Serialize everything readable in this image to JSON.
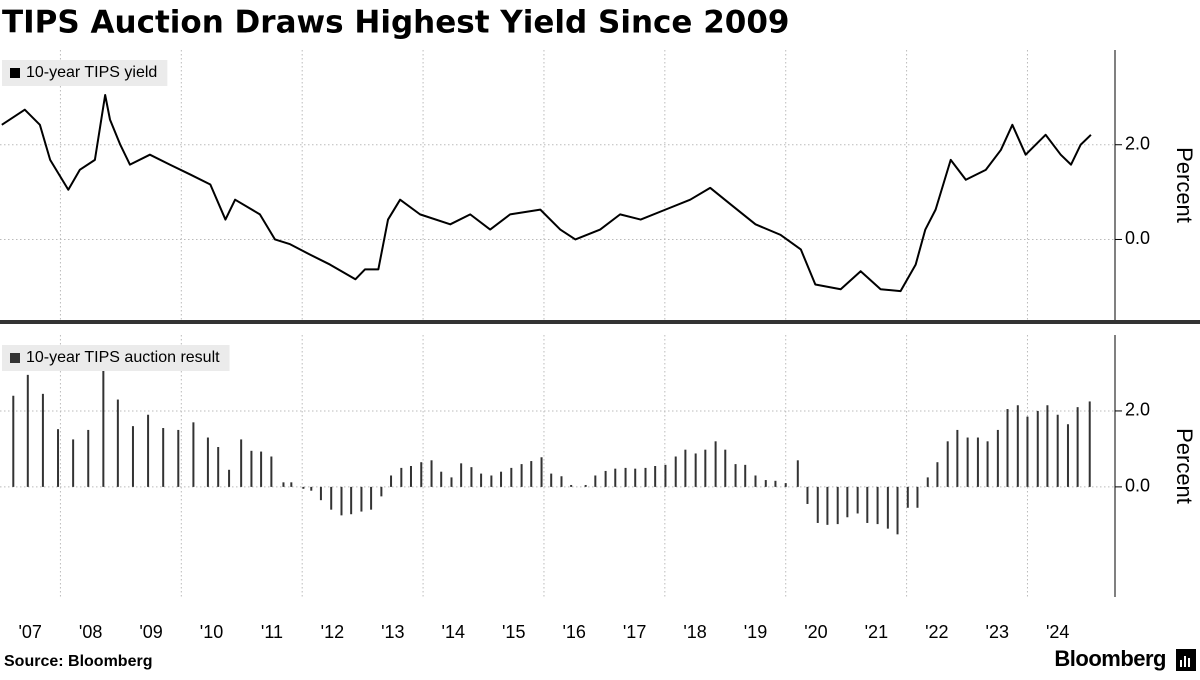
{
  "title": "TIPS Auction Draws Highest Yield Since 2009",
  "source": "Source: Bloomberg",
  "brand": "Bloomberg",
  "chart_data": [
    {
      "type": "line",
      "legend": "upper left",
      "ylabel": "Percent",
      "xlim": [
        2007,
        2025.2
      ],
      "ylim": [
        -1.7,
        4.0
      ],
      "yticks": [
        {
          "value": 0,
          "label": "0.0"
        },
        {
          "value": 2,
          "label": "2.0"
        }
      ],
      "xgrid": [
        2008,
        2010,
        2012,
        2014,
        2016,
        2018,
        2020,
        2022,
        2024
      ],
      "grid": true,
      "x": [
        2007.03,
        2007.41,
        2007.66,
        2007.83,
        2008.13,
        2008.32,
        2008.57,
        2008.74,
        2008.82,
        2008.99,
        2009.15,
        2009.48,
        2009.81,
        2010.15,
        2010.48,
        2010.73,
        2010.89,
        2011.3,
        2011.55,
        2011.8,
        2012.13,
        2012.46,
        2012.88,
        2013.04,
        2013.26,
        2013.42,
        2013.62,
        2013.95,
        2014.45,
        2014.78,
        2015.11,
        2015.44,
        2015.94,
        2016.27,
        2016.52,
        2016.93,
        2017.26,
        2017.6,
        2018.01,
        2018.42,
        2018.75,
        2019.09,
        2019.5,
        2019.91,
        2020.25,
        2020.49,
        2020.91,
        2021.24,
        2021.57,
        2021.9,
        2022.15,
        2022.31,
        2022.48,
        2022.73,
        2022.98,
        2023.31,
        2023.56,
        2023.75,
        2023.97,
        2024.3,
        2024.55,
        2024.72,
        2024.88,
        2025.05
      ],
      "series": [
        {
          "name": "10-year TIPS yield",
          "color": "#000000",
          "values": [
            2.42,
            2.74,
            2.42,
            1.68,
            1.05,
            1.47,
            1.68,
            3.05,
            2.53,
            2.0,
            1.58,
            1.79,
            1.58,
            1.37,
            1.16,
            0.42,
            0.84,
            0.53,
            0.0,
            -0.1,
            -0.32,
            -0.53,
            -0.84,
            -0.63,
            -0.63,
            0.42,
            0.84,
            0.53,
            0.32,
            0.53,
            0.21,
            0.53,
            0.63,
            0.21,
            0.0,
            0.21,
            0.53,
            0.42,
            0.63,
            0.84,
            1.09,
            0.74,
            0.32,
            0.1,
            -0.21,
            -0.95,
            -1.05,
            -0.67,
            -1.05,
            -1.09,
            -0.53,
            0.21,
            0.63,
            1.68,
            1.26,
            1.47,
            1.89,
            2.42,
            1.79,
            2.21,
            1.79,
            1.58,
            2.0,
            2.21
          ]
        }
      ]
    },
    {
      "type": "bar",
      "legend": "upper left",
      "ylabel": "Percent",
      "xlim": [
        2007,
        2025.2
      ],
      "ylim": [
        -2.9,
        4.0
      ],
      "yticks": [
        {
          "value": 0,
          "label": "0.0"
        },
        {
          "value": 2,
          "label": "2.0"
        }
      ],
      "xgrid": [
        2008,
        2010,
        2012,
        2014,
        2016,
        2018,
        2020,
        2022,
        2024
      ],
      "grid": true,
      "xticks": [
        {
          "value": 2007.5,
          "label": "'07"
        },
        {
          "value": 2008.5,
          "label": "'08"
        },
        {
          "value": 2009.5,
          "label": "'09"
        },
        {
          "value": 2010.5,
          "label": "'10"
        },
        {
          "value": 2011.5,
          "label": "'11"
        },
        {
          "value": 2012.5,
          "label": "'12"
        },
        {
          "value": 2013.5,
          "label": "'13"
        },
        {
          "value": 2014.5,
          "label": "'14"
        },
        {
          "value": 2015.5,
          "label": "'15"
        },
        {
          "value": 2016.5,
          "label": "'16"
        },
        {
          "value": 2017.5,
          "label": "'17"
        },
        {
          "value": 2018.5,
          "label": "'18"
        },
        {
          "value": 2019.5,
          "label": "'19"
        },
        {
          "value": 2020.5,
          "label": "'20"
        },
        {
          "value": 2021.5,
          "label": "'21"
        },
        {
          "value": 2022.5,
          "label": "'22"
        },
        {
          "value": 2023.5,
          "label": "'23"
        },
        {
          "value": 2024.5,
          "label": "'24"
        }
      ],
      "x": [
        2007.22,
        2007.46,
        2007.71,
        2007.96,
        2008.21,
        2008.46,
        2008.71,
        2008.95,
        2009.2,
        2009.45,
        2009.7,
        2009.95,
        2010.2,
        2010.44,
        2010.61,
        2010.79,
        2010.99,
        2011.16,
        2011.32,
        2011.49,
        2011.69,
        2011.82,
        2012.02,
        2012.15,
        2012.31,
        2012.48,
        2012.65,
        2012.81,
        2012.98,
        2013.14,
        2013.31,
        2013.47,
        2013.64,
        2013.8,
        2013.97,
        2014.14,
        2014.3,
        2014.47,
        2014.63,
        2014.8,
        2014.96,
        2015.13,
        2015.29,
        2015.46,
        2015.63,
        2015.79,
        2015.96,
        2016.12,
        2016.29,
        2016.45,
        2016.69,
        2016.85,
        2017.02,
        2017.18,
        2017.35,
        2017.51,
        2017.68,
        2017.84,
        2018.01,
        2018.18,
        2018.34,
        2018.51,
        2018.67,
        2018.84,
        2019.0,
        2019.17,
        2019.33,
        2019.5,
        2019.67,
        2019.83,
        2020.0,
        2020.2,
        2020.36,
        2020.53,
        2020.69,
        2020.86,
        2021.02,
        2021.19,
        2021.35,
        2021.52,
        2021.69,
        2021.85,
        2022.02,
        2022.18,
        2022.35,
        2022.51,
        2022.68,
        2022.84,
        2023.01,
        2023.18,
        2023.34,
        2023.51,
        2023.67,
        2023.84,
        2024.0,
        2024.17,
        2024.33,
        2024.5,
        2024.67,
        2024.83,
        2025.03
      ],
      "series": [
        {
          "name": "10-year TIPS auction result",
          "color": "#333333",
          "values": [
            2.4,
            2.95,
            2.45,
            1.52,
            1.25,
            1.5,
            3.1,
            2.3,
            1.6,
            1.9,
            1.55,
            1.5,
            1.7,
            1.3,
            1.05,
            0.45,
            1.25,
            0.95,
            0.93,
            0.8,
            0.12,
            0.12,
            -0.05,
            -0.1,
            -0.35,
            -0.6,
            -0.75,
            -0.72,
            -0.65,
            -0.6,
            -0.25,
            0.3,
            0.5,
            0.55,
            0.65,
            0.7,
            0.4,
            0.25,
            0.62,
            0.52,
            0.35,
            0.3,
            0.4,
            0.5,
            0.6,
            0.68,
            0.78,
            0.35,
            0.28,
            0.05,
            0.05,
            0.3,
            0.42,
            0.48,
            0.5,
            0.48,
            0.5,
            0.55,
            0.58,
            0.8,
            0.98,
            0.88,
            0.98,
            1.2,
            0.98,
            0.6,
            0.58,
            0.3,
            0.18,
            0.16,
            0.1,
            0.7,
            -0.45,
            -0.95,
            -1.0,
            -0.98,
            -0.8,
            -0.7,
            -0.95,
            -0.98,
            -1.1,
            -1.25,
            -0.55,
            -0.55,
            0.25,
            0.65,
            1.2,
            1.5,
            1.3,
            1.3,
            1.2,
            1.5,
            2.05,
            2.15,
            1.85,
            2.0,
            2.15,
            1.9,
            1.65,
            2.1,
            2.25
          ]
        }
      ]
    }
  ]
}
